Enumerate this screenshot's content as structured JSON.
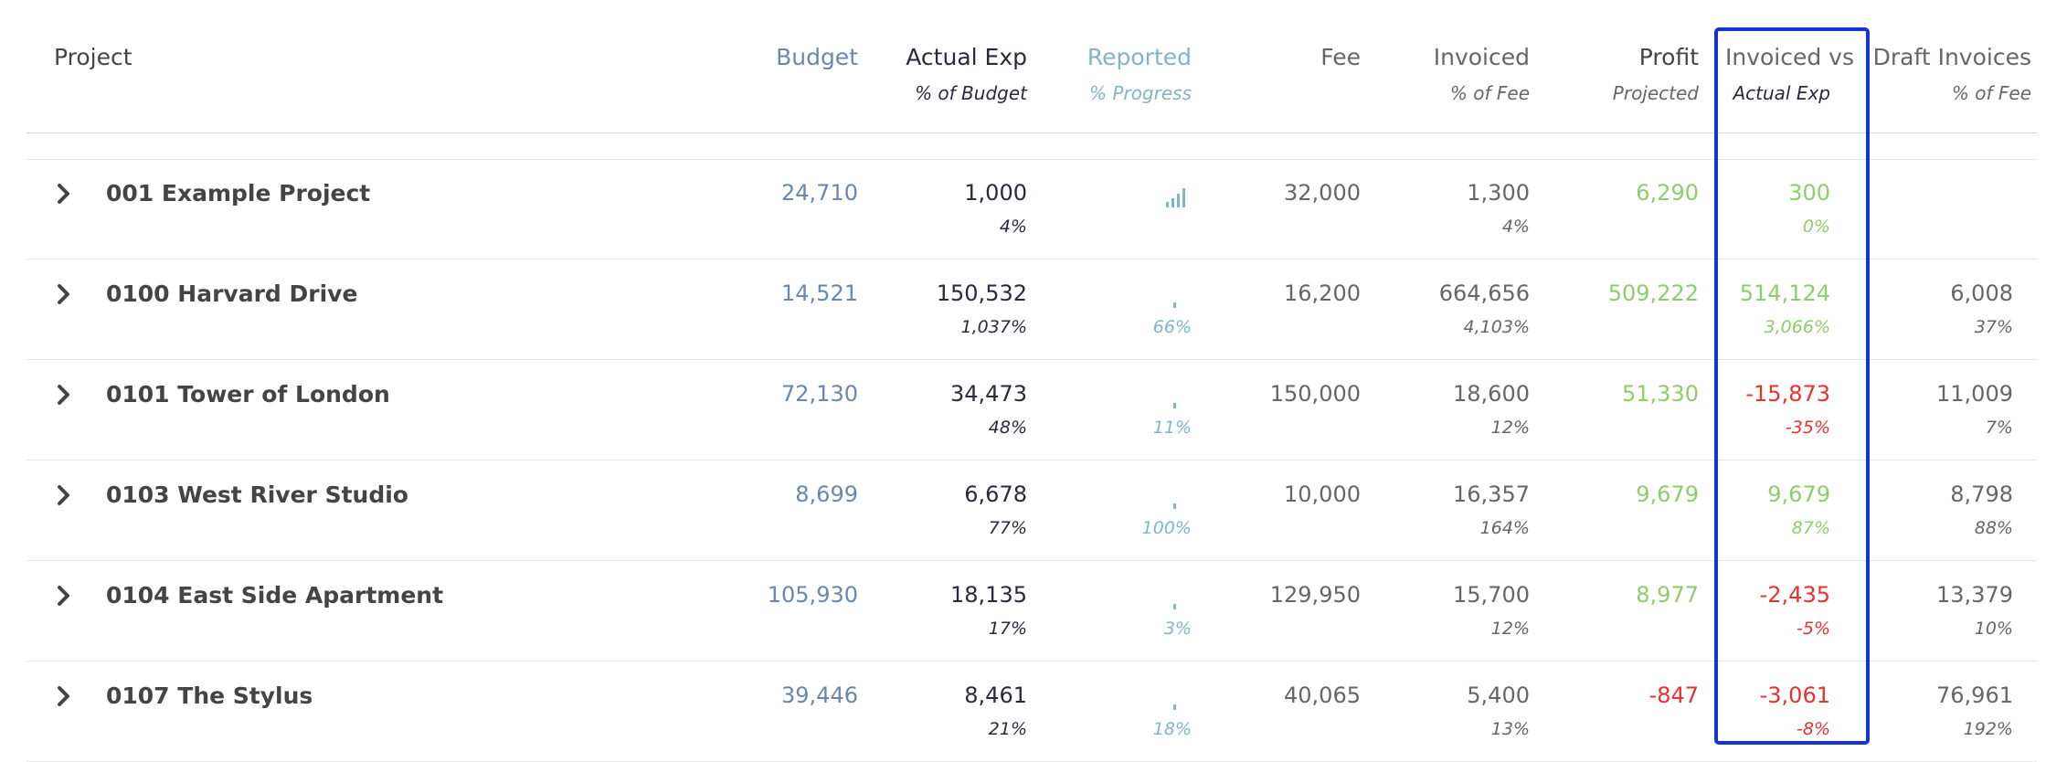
{
  "header": {
    "project": "Project",
    "budget": "Budget",
    "actual": "Actual Exp",
    "actual_sub": "% of Budget",
    "reported": "Reported",
    "reported_sub": "% Progress",
    "fee": "Fee",
    "invoiced": "Invoiced",
    "invoiced_sub": "% of Fee",
    "profit": "Profit",
    "profit_sub": "Projected",
    "inv_vs": "Invoiced vs",
    "inv_vs_sub": "Actual Exp",
    "draft": "Draft Invoices",
    "draft_sub": "% of Fee"
  },
  "colors": {
    "green": "#8ccf6a",
    "red": "#e8322f",
    "highlight": "#1434d6"
  },
  "rows": [
    {
      "name": "001 Example Project",
      "budget": "24,710",
      "actual": "1,000",
      "actual_pct": "4%",
      "reported_pct": "",
      "reported_bars": true,
      "fee": "32,000",
      "invoiced": "1,300",
      "invoiced_pct": "4%",
      "profit": "6,290",
      "profit_color": "green",
      "inv_vs": "300",
      "inv_vs_pct": "0%",
      "inv_vs_color": "green",
      "draft": "",
      "draft_pct": ""
    },
    {
      "name": "0100 Harvard Drive",
      "budget": "14,521",
      "actual": "150,532",
      "actual_pct": "1,037%",
      "reported_pct": "66%",
      "reported_bars": false,
      "fee": "16,200",
      "invoiced": "664,656",
      "invoiced_pct": "4,103%",
      "profit": "509,222",
      "profit_color": "green",
      "inv_vs": "514,124",
      "inv_vs_pct": "3,066%",
      "inv_vs_color": "green",
      "draft": "6,008",
      "draft_pct": "37%"
    },
    {
      "name": "0101 Tower of London",
      "budget": "72,130",
      "actual": "34,473",
      "actual_pct": "48%",
      "reported_pct": "11%",
      "reported_bars": false,
      "fee": "150,000",
      "invoiced": "18,600",
      "invoiced_pct": "12%",
      "profit": "51,330",
      "profit_color": "green",
      "inv_vs": "-15,873",
      "inv_vs_pct": "-35%",
      "inv_vs_color": "red",
      "draft": "11,009",
      "draft_pct": "7%"
    },
    {
      "name": "0103 West River Studio",
      "budget": "8,699",
      "actual": "6,678",
      "actual_pct": "77%",
      "reported_pct": "100%",
      "reported_bars": false,
      "fee": "10,000",
      "invoiced": "16,357",
      "invoiced_pct": "164%",
      "profit": "9,679",
      "profit_color": "green",
      "inv_vs": "9,679",
      "inv_vs_pct": "87%",
      "inv_vs_color": "green",
      "draft": "8,798",
      "draft_pct": "88%"
    },
    {
      "name": "0104 East Side Apartment",
      "budget": "105,930",
      "actual": "18,135",
      "actual_pct": "17%",
      "reported_pct": "3%",
      "reported_bars": false,
      "fee": "129,950",
      "invoiced": "15,700",
      "invoiced_pct": "12%",
      "profit": "8,977",
      "profit_color": "green",
      "inv_vs": "-2,435",
      "inv_vs_pct": "-5%",
      "inv_vs_color": "red",
      "draft": "13,379",
      "draft_pct": "10%"
    },
    {
      "name": "0107 The Stylus",
      "budget": "39,446",
      "actual": "8,461",
      "actual_pct": "21%",
      "reported_pct": "18%",
      "reported_bars": false,
      "fee": "40,065",
      "invoiced": "5,400",
      "invoiced_pct": "13%",
      "profit": "-847",
      "profit_color": "red",
      "inv_vs": "-3,061",
      "inv_vs_pct": "-8%",
      "inv_vs_color": "red",
      "draft": "76,961",
      "draft_pct": "192%"
    }
  ]
}
